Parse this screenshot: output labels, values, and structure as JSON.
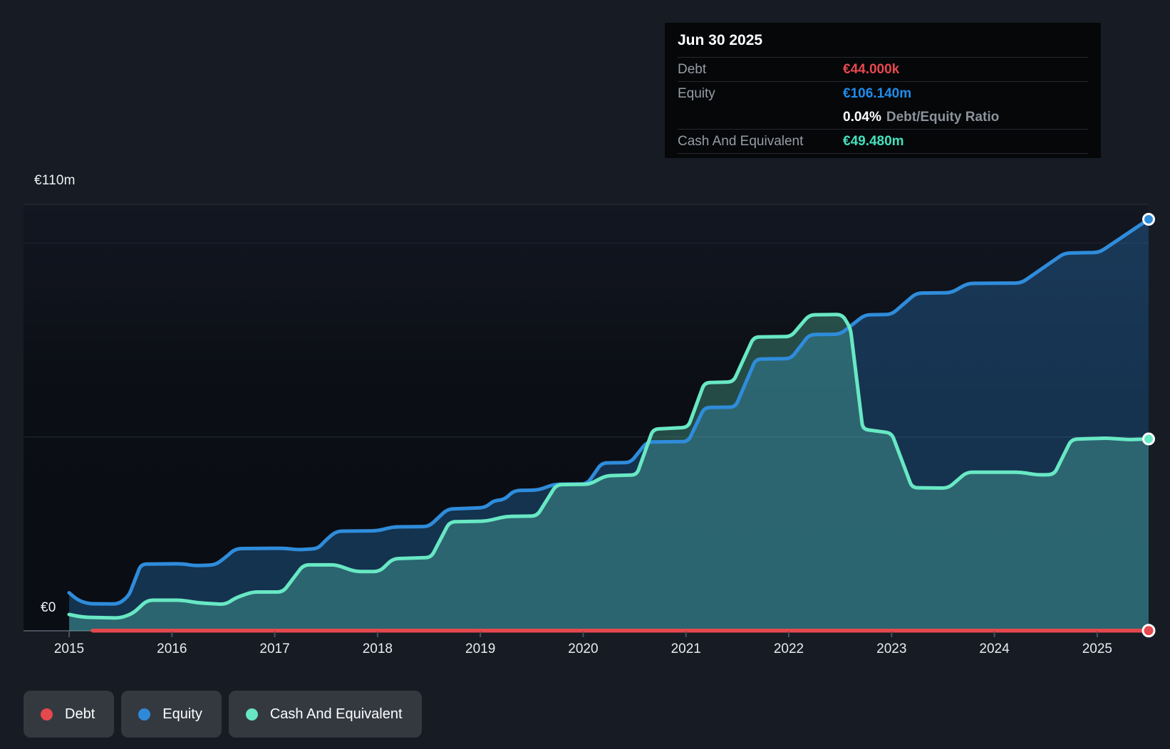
{
  "tooltip": {
    "date": "Jun 30 2025",
    "rows": [
      {
        "label": "Debt",
        "value": "€44.000k"
      },
      {
        "label": "Equity",
        "value": "€106.140m"
      }
    ],
    "ratio_value": "0.04%",
    "ratio_label": "Debt/Equity Ratio",
    "cash_label": "Cash And Equivalent",
    "cash_value": "€49.480m",
    "colors": {
      "debt": "#e5484d",
      "equity": "#1f8ceb",
      "cash": "#45e0bd"
    }
  },
  "legend": {
    "items": [
      {
        "label": "Debt",
        "color": "#e5484d"
      },
      {
        "label": "Equity",
        "color": "#2e8ad8"
      },
      {
        "label": "Cash And Equivalent",
        "color": "#67e7c3"
      }
    ]
  },
  "chart_data": {
    "type": "area",
    "x_unit": "year",
    "xlim": [
      2015.0,
      2025.5
    ],
    "ylim": [
      0,
      110
    ],
    "grid": true,
    "legend_position": "bottom-left",
    "currency": "EUR",
    "y_gridlines": [
      {
        "value": 110,
        "label": "€110m"
      },
      {
        "value": 100,
        "label": ""
      },
      {
        "value": 50,
        "label": ""
      },
      {
        "value": 0,
        "label": "€0"
      }
    ],
    "x_ticks": [
      2015,
      2016,
      2017,
      2018,
      2019,
      2020,
      2021,
      2022,
      2023,
      2024,
      2025
    ],
    "series": [
      {
        "name": "Equity",
        "color": "#2f8cdb",
        "fill_opacity": 0.3,
        "unit": "€m",
        "points": [
          [
            2015.0,
            9.8
          ],
          [
            2015.08,
            8.0
          ],
          [
            2015.18,
            7.0
          ],
          [
            2015.48,
            6.9
          ],
          [
            2015.58,
            9.0
          ],
          [
            2015.7,
            17.2
          ],
          [
            2016.1,
            17.3
          ],
          [
            2016.22,
            16.8
          ],
          [
            2016.42,
            17.0
          ],
          [
            2016.5,
            18.5
          ],
          [
            2016.62,
            21.2
          ],
          [
            2017.1,
            21.3
          ],
          [
            2017.22,
            20.9
          ],
          [
            2017.42,
            21.2
          ],
          [
            2017.5,
            23.5
          ],
          [
            2017.6,
            25.7
          ],
          [
            2018.0,
            25.8
          ],
          [
            2018.15,
            26.8
          ],
          [
            2018.5,
            26.9
          ],
          [
            2018.68,
            31.4
          ],
          [
            2019.05,
            31.8
          ],
          [
            2019.13,
            33.6
          ],
          [
            2019.23,
            33.8
          ],
          [
            2019.33,
            36.2
          ],
          [
            2019.56,
            36.3
          ],
          [
            2019.72,
            37.8
          ],
          [
            2020.04,
            37.9
          ],
          [
            2020.18,
            43.3
          ],
          [
            2020.46,
            43.4
          ],
          [
            2020.62,
            48.7
          ],
          [
            2021.02,
            48.8
          ],
          [
            2021.18,
            57.6
          ],
          [
            2021.48,
            57.7
          ],
          [
            2021.68,
            70.1
          ],
          [
            2022.02,
            70.2
          ],
          [
            2022.2,
            76.4
          ],
          [
            2022.5,
            76.5
          ],
          [
            2022.74,
            81.5
          ],
          [
            2023.0,
            81.6
          ],
          [
            2023.24,
            87.1
          ],
          [
            2023.58,
            87.2
          ],
          [
            2023.74,
            89.6
          ],
          [
            2024.26,
            89.7
          ],
          [
            2024.68,
            97.4
          ],
          [
            2025.02,
            97.6
          ],
          [
            2025.5,
            106.14
          ]
        ]
      },
      {
        "name": "Cash And Equivalent",
        "color": "#68e8c4",
        "fill_opacity": 0.28,
        "unit": "€m",
        "points": [
          [
            2015.0,
            4.2
          ],
          [
            2015.14,
            3.5
          ],
          [
            2015.5,
            3.3
          ],
          [
            2015.62,
            4.5
          ],
          [
            2015.76,
            7.9
          ],
          [
            2016.1,
            7.9
          ],
          [
            2016.26,
            7.2
          ],
          [
            2016.52,
            6.8
          ],
          [
            2016.62,
            8.5
          ],
          [
            2016.78,
            10.0
          ],
          [
            2017.08,
            10.0
          ],
          [
            2017.28,
            17.0
          ],
          [
            2017.6,
            17.0
          ],
          [
            2017.78,
            15.3
          ],
          [
            2018.02,
            15.3
          ],
          [
            2018.15,
            18.6
          ],
          [
            2018.52,
            18.9
          ],
          [
            2018.7,
            28.1
          ],
          [
            2019.06,
            28.3
          ],
          [
            2019.25,
            29.5
          ],
          [
            2019.55,
            29.6
          ],
          [
            2019.74,
            37.7
          ],
          [
            2020.06,
            37.8
          ],
          [
            2020.22,
            40.0
          ],
          [
            2020.52,
            40.2
          ],
          [
            2020.68,
            52.0
          ],
          [
            2021.02,
            52.5
          ],
          [
            2021.18,
            64.0
          ],
          [
            2021.46,
            64.2
          ],
          [
            2021.66,
            75.8
          ],
          [
            2022.02,
            75.9
          ],
          [
            2022.2,
            81.5
          ],
          [
            2022.52,
            81.6
          ],
          [
            2022.6,
            78.0
          ],
          [
            2022.72,
            52.0
          ],
          [
            2023.0,
            51.0
          ],
          [
            2023.2,
            36.9
          ],
          [
            2023.55,
            36.8
          ],
          [
            2023.73,
            40.9
          ],
          [
            2024.26,
            40.9
          ],
          [
            2024.42,
            40.2
          ],
          [
            2024.58,
            40.3
          ],
          [
            2024.75,
            49.4
          ],
          [
            2025.1,
            49.7
          ],
          [
            2025.3,
            49.3
          ],
          [
            2025.5,
            49.48
          ]
        ]
      },
      {
        "name": "Debt",
        "color": "#e5484d",
        "fill_opacity": 0,
        "unit": "€m",
        "points": [
          [
            2015.23,
            0.05
          ],
          [
            2018.0,
            0.05
          ],
          [
            2021.0,
            0.05
          ],
          [
            2024.0,
            0.05
          ],
          [
            2025.5,
            0.044
          ]
        ]
      }
    ]
  }
}
